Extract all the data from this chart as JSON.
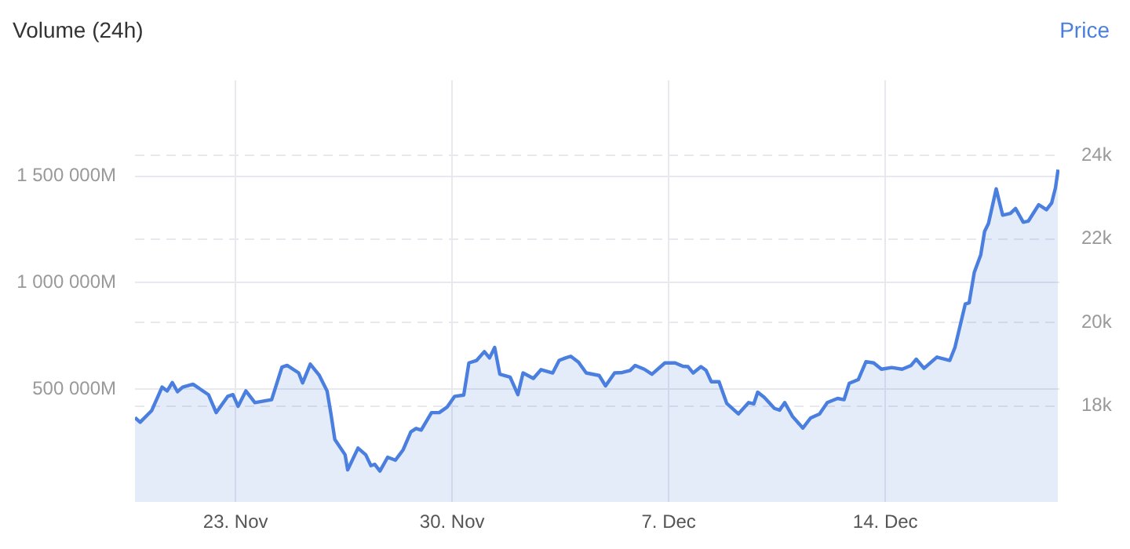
{
  "chart_data": {
    "type": "area",
    "ylabel": "Volume (24h)",
    "y2label": "Price",
    "ylim": [
      -30000,
      1950000
    ],
    "yticks": [
      {
        "value": 500000,
        "label": "500 000M"
      },
      {
        "value": 1000000,
        "label": "1 000 000M"
      },
      {
        "value": 1500000,
        "label": "1 500 000M"
      }
    ],
    "y2lim": [
      15700,
      25800
    ],
    "y2ticks": [
      {
        "value": 18000,
        "label": "18k"
      },
      {
        "value": 20000,
        "label": "20k"
      },
      {
        "value": 22000,
        "label": "22k"
      },
      {
        "value": 24000,
        "label": "24k"
      }
    ],
    "xlim": [
      "--11-19T18:00",
      "--12-19T15:00"
    ],
    "xticks": [
      {
        "value": "--11-23",
        "label": "23. Nov"
      },
      {
        "value": "--11-30",
        "label": "30. Nov"
      },
      {
        "value": "--12-07",
        "label": "7. Dec"
      },
      {
        "value": "--12-14",
        "label": "14. Dec"
      }
    ],
    "grid": true,
    "legend": false,
    "series": [
      {
        "axis": "y2",
        "color": "#4a7fe0",
        "x": [
          "--11-19T18:00",
          "--11-19T22:00",
          "--11-20T07:00",
          "--11-20T15:00",
          "--11-20T19:00",
          "--11-20T23:00",
          "--11-21T03:00",
          "--11-21T07:00",
          "--11-21T15:00",
          "--11-22T03:00",
          "--11-22T09:00",
          "--11-22T18:00",
          "--11-22T22:00",
          "--11-23T02:00",
          "--11-23T08:00",
          "--11-23T15:00",
          "--11-24T04:00",
          "--11-24T12:00",
          "--11-24T16:00",
          "--11-25T01:00",
          "--11-25T04:00",
          "--11-25T10:00",
          "--11-25T17:00",
          "--11-25T23:00",
          "--11-26T02:00",
          "--11-26T05:00",
          "--11-26T13:00",
          "--11-26T15:00",
          "--11-26T23:00",
          "--11-27T05:00",
          "--11-27T09:00",
          "--11-27T12:00",
          "--11-27T16:00",
          "--11-27T22:00",
          "--11-28T04:00",
          "--11-28T10:00",
          "--11-28T16:00",
          "--11-28T20:00",
          "--11-29T00:00",
          "--11-29T08:00",
          "--11-29T14:00",
          "--11-29T20:00",
          "--11-30T02:00",
          "--11-30T09:00",
          "--11-30T13:00",
          "--11-30T19:00",
          "--12-01T01:00",
          "--12-01T05:00",
          "--12-01T09:00",
          "--12-01T13:00",
          "--12-01T21:00",
          "--12-02T03:00",
          "--12-02T07:00",
          "--12-02T15:00",
          "--12-02T21:00",
          "--12-03T06:00",
          "--12-03T11:00",
          "--12-03T16:00",
          "--12-03T20:00",
          "--12-04T02:00",
          "--12-04T08:00",
          "--12-04T18:00",
          "--12-04T23:00",
          "--12-05T06:00",
          "--12-05T12:00",
          "--12-05T18:00",
          "--12-05T22:00",
          "--12-06T05:00",
          "--12-06T11:00",
          "--12-06T21:00",
          "--12-07T05:00",
          "--12-07T11:00",
          "--12-07T15:00",
          "--12-07T19:00",
          "--12-08T01:00",
          "--12-08T05:00",
          "--12-08T09:00",
          "--12-08T15:00",
          "--12-08T21:00",
          "--12-09T06:00",
          "--12-09T14:00",
          "--12-09T18:00",
          "--12-09T21:00",
          "--12-10T02:00",
          "--12-10T10:00",
          "--12-10T14:00",
          "--12-10T18:00",
          "--12-11T00:00",
          "--12-11T08:00",
          "--12-11T14:00",
          "--12-11T21:00",
          "--12-12T03:00",
          "--12-12T11:00",
          "--12-12T16:00",
          "--12-12T20:00",
          "--12-13T03:00",
          "--12-13T09:00",
          "--12-13T15:00",
          "--12-13T21:00",
          "--12-14T05:00",
          "--12-14T13:00",
          "--12-14T20:00",
          "--12-15T00:00",
          "--12-15T06:00",
          "--12-15T16:00",
          "--12-16T02:00",
          "--12-16T06:00",
          "--12-16T14:00",
          "--12-16T17:00",
          "--12-16T21:00",
          "--12-17T02:00",
          "--12-17T05:00",
          "--12-17T08:00",
          "--12-17T14:00",
          "--12-17T19:00",
          "--12-18T01:00",
          "--12-18T05:00",
          "--12-18T11:00",
          "--12-18T15:00",
          "--12-18T23:00",
          "--12-19T05:00",
          "--12-19T09:00",
          "--12-19T12:00",
          "--12-19T14:00"
        ],
        "values": [
          17720,
          17610,
          17890,
          18450,
          18360,
          18560,
          18340,
          18450,
          18520,
          18270,
          17840,
          18230,
          18270,
          17990,
          18360,
          18080,
          18150,
          18930,
          18970,
          18790,
          18550,
          19000,
          18730,
          18360,
          17810,
          17200,
          16830,
          16470,
          16990,
          16830,
          16570,
          16600,
          16440,
          16770,
          16700,
          16950,
          17380,
          17460,
          17420,
          17840,
          17840,
          17970,
          18230,
          18260,
          19030,
          19090,
          19300,
          19150,
          19400,
          18760,
          18690,
          18270,
          18790,
          18660,
          18870,
          18790,
          19090,
          19150,
          19190,
          19050,
          18790,
          18730,
          18480,
          18790,
          18800,
          18850,
          18970,
          18880,
          18760,
          19030,
          19030,
          18950,
          18940,
          18790,
          18940,
          18850,
          18580,
          18580,
          18060,
          17810,
          18080,
          18050,
          18330,
          18210,
          17940,
          17900,
          18080,
          17750,
          17470,
          17710,
          17810,
          18080,
          18180,
          18150,
          18540,
          18630,
          19060,
          19030,
          18880,
          18920,
          18880,
          18970,
          19120,
          18900,
          19170,
          19090,
          19400,
          20440,
          20470,
          21200,
          21620,
          22180,
          22370,
          23200,
          22570,
          22610,
          22730,
          22400,
          22430,
          22820,
          22700,
          22860,
          23230,
          23660
        ]
      }
    ]
  }
}
